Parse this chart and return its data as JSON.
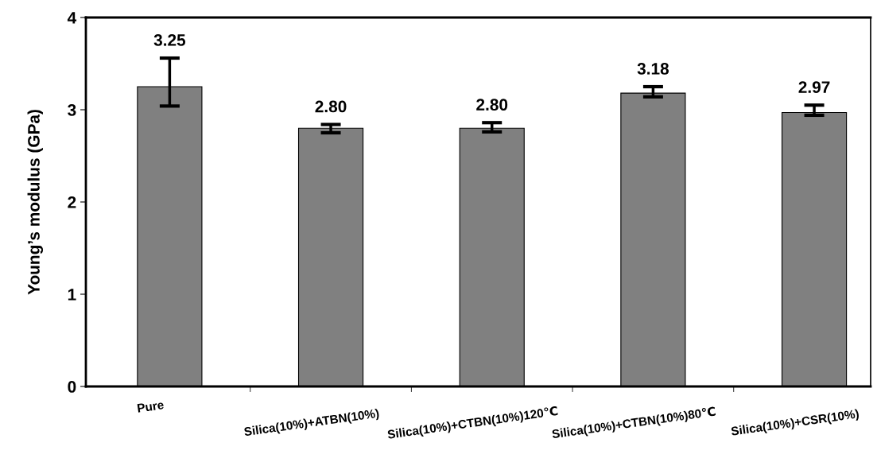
{
  "chart_data": {
    "type": "bar",
    "ylabel": "Young’s modulus (GPa)",
    "categories": [
      "Pure",
      "Silica(10%)+ATBN(10%)",
      "Silica(10%)+CTBN(10%)120℃",
      "Silica(10%)+CTBN(10%)80℃",
      "Silica(10%)+CSR(10%)"
    ],
    "values": [
      3.25,
      2.8,
      2.8,
      3.18,
      2.97
    ],
    "errors": [
      [
        3.04,
        3.56
      ],
      [
        2.75,
        2.84
      ],
      [
        2.76,
        2.86
      ],
      [
        3.14,
        3.25
      ],
      [
        2.94,
        3.05
      ]
    ],
    "value_labels": [
      "3.25",
      "2.80",
      "2.80",
      "3.18",
      "2.97"
    ],
    "color": "#808080",
    "ylim": [
      0,
      4
    ],
    "yticks": [
      0,
      1,
      2,
      3,
      4
    ],
    "grid": false
  }
}
